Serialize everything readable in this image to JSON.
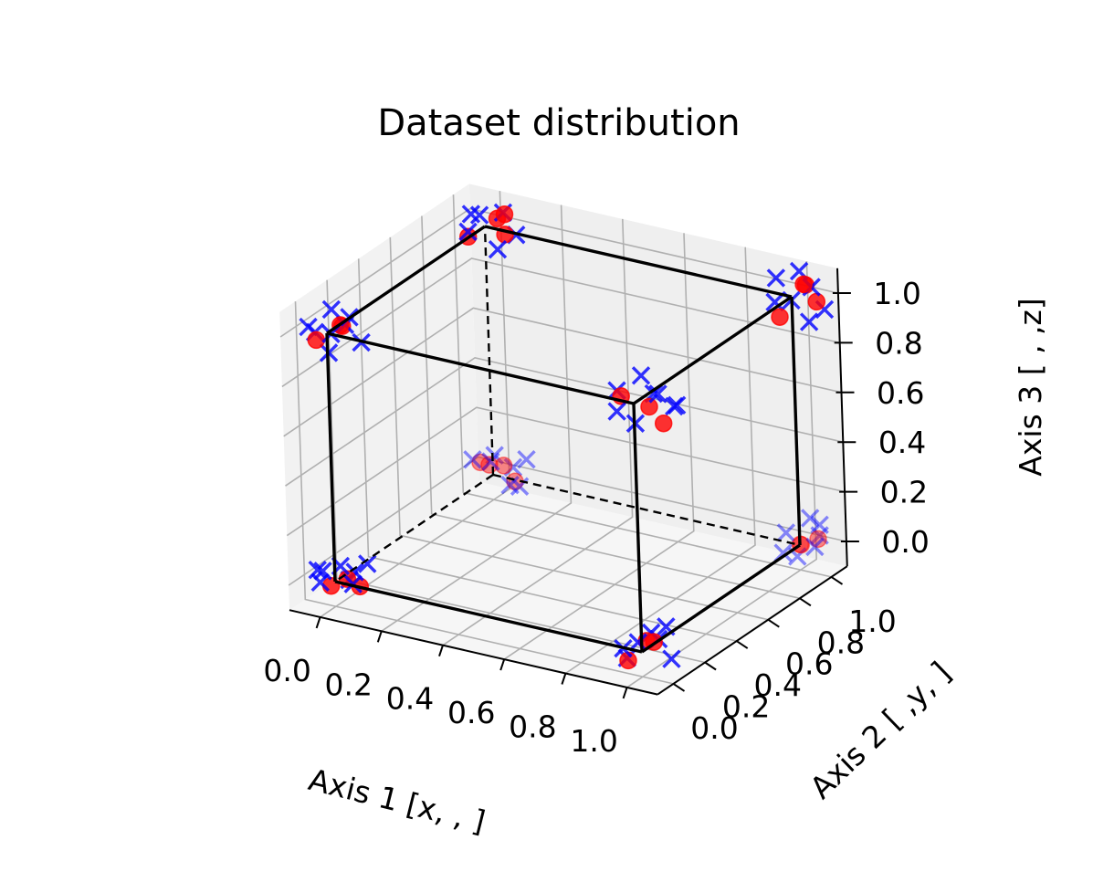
{
  "chart_data": {
    "type": "scatter",
    "projection": "3d",
    "title": "Dataset distribution",
    "xlabel": "Axis 1 [x, , ]",
    "ylabel": "Axis 2 [ ,y, ]",
    "zlabel": "Axis 3 [ , ,z]",
    "xlim": [
      -0.1,
      1.1
    ],
    "ylim": [
      -0.1,
      1.1
    ],
    "zlim": [
      -0.1,
      1.1
    ],
    "xticks": [
      "0.0",
      "0.2",
      "0.4",
      "0.6",
      "0.8",
      "1.0"
    ],
    "yticks": [
      "0.0",
      "0.2",
      "0.4",
      "0.6",
      "0.8",
      "1.0"
    ],
    "zticks": [
      "0.0",
      "0.2",
      "0.4",
      "0.6",
      "0.8",
      "1.0"
    ],
    "grid": true,
    "colors": {
      "circles": "#ff0000",
      "crosses": "#0000ff",
      "cube": "#000000",
      "pane": "#f2f2f2",
      "grid": "#b0b0b0"
    },
    "cube_edges": "unit cube [0,1]^3; hidden edges dashed",
    "series": [
      {
        "marker": "circle",
        "color": "#ff0000",
        "points": [
          [
            0.03,
            0.02,
            0.01
          ],
          [
            -0.04,
            0.05,
            -0.05
          ],
          [
            0.06,
            0.04,
            -0.02
          ],
          [
            1.03,
            0.02,
            0.04
          ],
          [
            0.97,
            -0.03,
            -0.03
          ],
          [
            0.99,
            0.05,
            0.02
          ],
          [
            0.02,
            1.03,
            0.03
          ],
          [
            -0.03,
            0.98,
            0.05
          ],
          [
            0.05,
            1.04,
            -0.03
          ],
          [
            0.01,
            0.96,
            0.06
          ],
          [
            1.02,
            0.97,
            0.02
          ],
          [
            0.98,
            1.04,
            -0.02
          ],
          [
            1.05,
            1.02,
            0.03
          ],
          [
            0.03,
            0.04,
            1.02
          ],
          [
            -0.02,
            -0.03,
            0.98
          ],
          [
            0.04,
            0.01,
            1.04
          ],
          [
            1.04,
            0.02,
            0.99
          ],
          [
            1.08,
            0.03,
            0.93
          ],
          [
            0.97,
            -0.02,
            1.03
          ],
          [
            0.02,
            1.04,
            1.02
          ],
          [
            -0.04,
            0.97,
            0.96
          ],
          [
            0.05,
            1.03,
            1.05
          ],
          [
            0.06,
            1.01,
            0.98
          ],
          [
            1.03,
            1.02,
            1.05
          ],
          [
            1.06,
            1.04,
            0.98
          ],
          [
            0.98,
            0.96,
            0.93
          ],
          [
            1.01,
            1.07,
            1.02
          ]
        ]
      },
      {
        "marker": "x",
        "color": "#0000ff",
        "points": [
          [
            0.05,
            0.03,
            0.04
          ],
          [
            -0.05,
            0.02,
            0.02
          ],
          [
            0.08,
            -0.04,
            0.03
          ],
          [
            0.01,
            0.07,
            -0.02
          ],
          [
            -0.03,
            -0.05,
            0.06
          ],
          [
            0.06,
            0.09,
            0.05
          ],
          [
            -0.07,
            0.04,
            -0.04
          ],
          [
            0.03,
            -0.02,
            0.08
          ],
          [
            1.04,
            0.03,
            0.05
          ],
          [
            0.96,
            -0.04,
            0.02
          ],
          [
            1.07,
            0.05,
            -0.03
          ],
          [
            0.99,
            0.08,
            0.04
          ],
          [
            1.02,
            -0.06,
            0.07
          ],
          [
            0.94,
            0.02,
            -0.05
          ],
          [
            1.05,
            0.06,
            0.09
          ],
          [
            0.04,
            1.05,
            0.02
          ],
          [
            -0.05,
            0.97,
            0.06
          ],
          [
            0.07,
            1.03,
            -0.04
          ],
          [
            0.02,
            0.95,
            0.08
          ],
          [
            -0.03,
            1.07,
            0.04
          ],
          [
            0.06,
            0.99,
            -0.02
          ],
          [
            0.09,
            1.04,
            0.07
          ],
          [
            1.05,
            1.03,
            0.04
          ],
          [
            0.96,
            0.97,
            -0.03
          ],
          [
            1.03,
            1.07,
            0.06
          ],
          [
            0.98,
            1.02,
            -0.06
          ],
          [
            1.07,
            0.96,
            0.03
          ],
          [
            1.01,
            1.05,
            0.09
          ],
          [
            0.94,
            1.03,
            0.02
          ],
          [
            0.05,
            0.02,
            1.04
          ],
          [
            -0.06,
            0.04,
            0.97
          ],
          [
            0.04,
            -0.05,
            1.03
          ],
          [
            0.08,
            0.06,
            0.96
          ],
          [
            -0.02,
            0.07,
            1.06
          ],
          [
            0.02,
            -0.03,
            0.94
          ],
          [
            0.07,
            0.01,
            1.08
          ],
          [
            -0.05,
            -0.02,
            1.02
          ],
          [
            1.04,
            0.05,
            1.03
          ],
          [
            0.96,
            -0.03,
            0.97
          ],
          [
            1.07,
            0.02,
            1.05
          ],
          [
            1.12,
            0.04,
            1.01
          ],
          [
            0.99,
            0.07,
            1.08
          ],
          [
            1.03,
            -0.05,
            0.95
          ],
          [
            0.93,
            0.03,
            1.02
          ],
          [
            1.09,
            0.08,
            0.98
          ],
          [
            0.04,
            1.04,
            1.05
          ],
          [
            -0.04,
            0.97,
            0.98
          ],
          [
            0.07,
            1.06,
            0.96
          ],
          [
            0.01,
            0.95,
            1.07
          ],
          [
            -0.06,
            1.03,
            1.02
          ],
          [
            0.05,
            0.98,
            0.93
          ],
          [
            1.05,
            1.03,
            1.04
          ],
          [
            0.96,
            0.97,
            0.98
          ],
          [
            1.08,
            1.05,
            0.95
          ],
          [
            0.99,
            1.07,
            1.07
          ],
          [
            1.03,
            0.94,
            1.02
          ],
          [
            0.94,
            1.02,
            1.05
          ],
          [
            1.06,
            0.99,
            0.92
          ]
        ]
      }
    ]
  }
}
